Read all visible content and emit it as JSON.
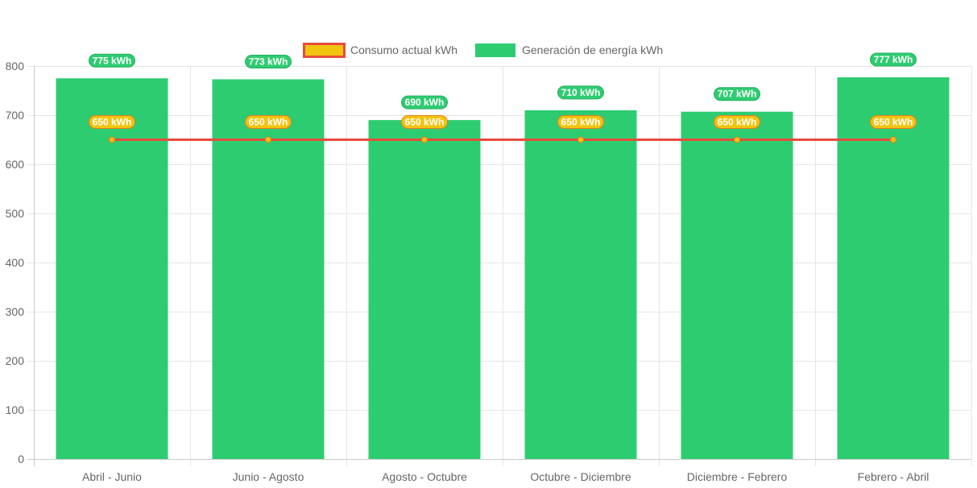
{
  "chart_data": {
    "type": "bar",
    "title": "",
    "xlabel": "",
    "ylabel": "",
    "ylim": [
      0,
      800
    ],
    "yticks": [
      0,
      100,
      200,
      300,
      400,
      500,
      600,
      700,
      800
    ],
    "grid": true,
    "legend_position": "top-center",
    "categories": [
      "Abril - Junio",
      "Junio - Agosto",
      "Agosto - Octubre",
      "Octubre - Diciembre",
      "Diciembre - Febrero",
      "Febrero - Abril"
    ],
    "series": [
      {
        "name": "Consumo actual kWh",
        "type": "line",
        "values": [
          650,
          650,
          650,
          650,
          650,
          650
        ],
        "labels": [
          "650 kWh",
          "650 kWh",
          "650 kWh",
          "650 kWh",
          "650 kWh",
          "650 kWh"
        ],
        "color": "#e74c3c",
        "point_color": "#f1c40f",
        "label_bg": "#f1c40f",
        "label_border": "#e67e22"
      },
      {
        "name": "Generación de energía kWh",
        "type": "bar",
        "values": [
          775,
          773,
          690,
          710,
          707,
          777
        ],
        "labels": [
          "775 kWh",
          "773 kWh",
          "690 kWh",
          "710 kWh",
          "707 kWh",
          "777 kWh"
        ],
        "color": "#2ecc71",
        "label_bg": "#2ecc71",
        "label_border": "#27ae60"
      }
    ]
  }
}
